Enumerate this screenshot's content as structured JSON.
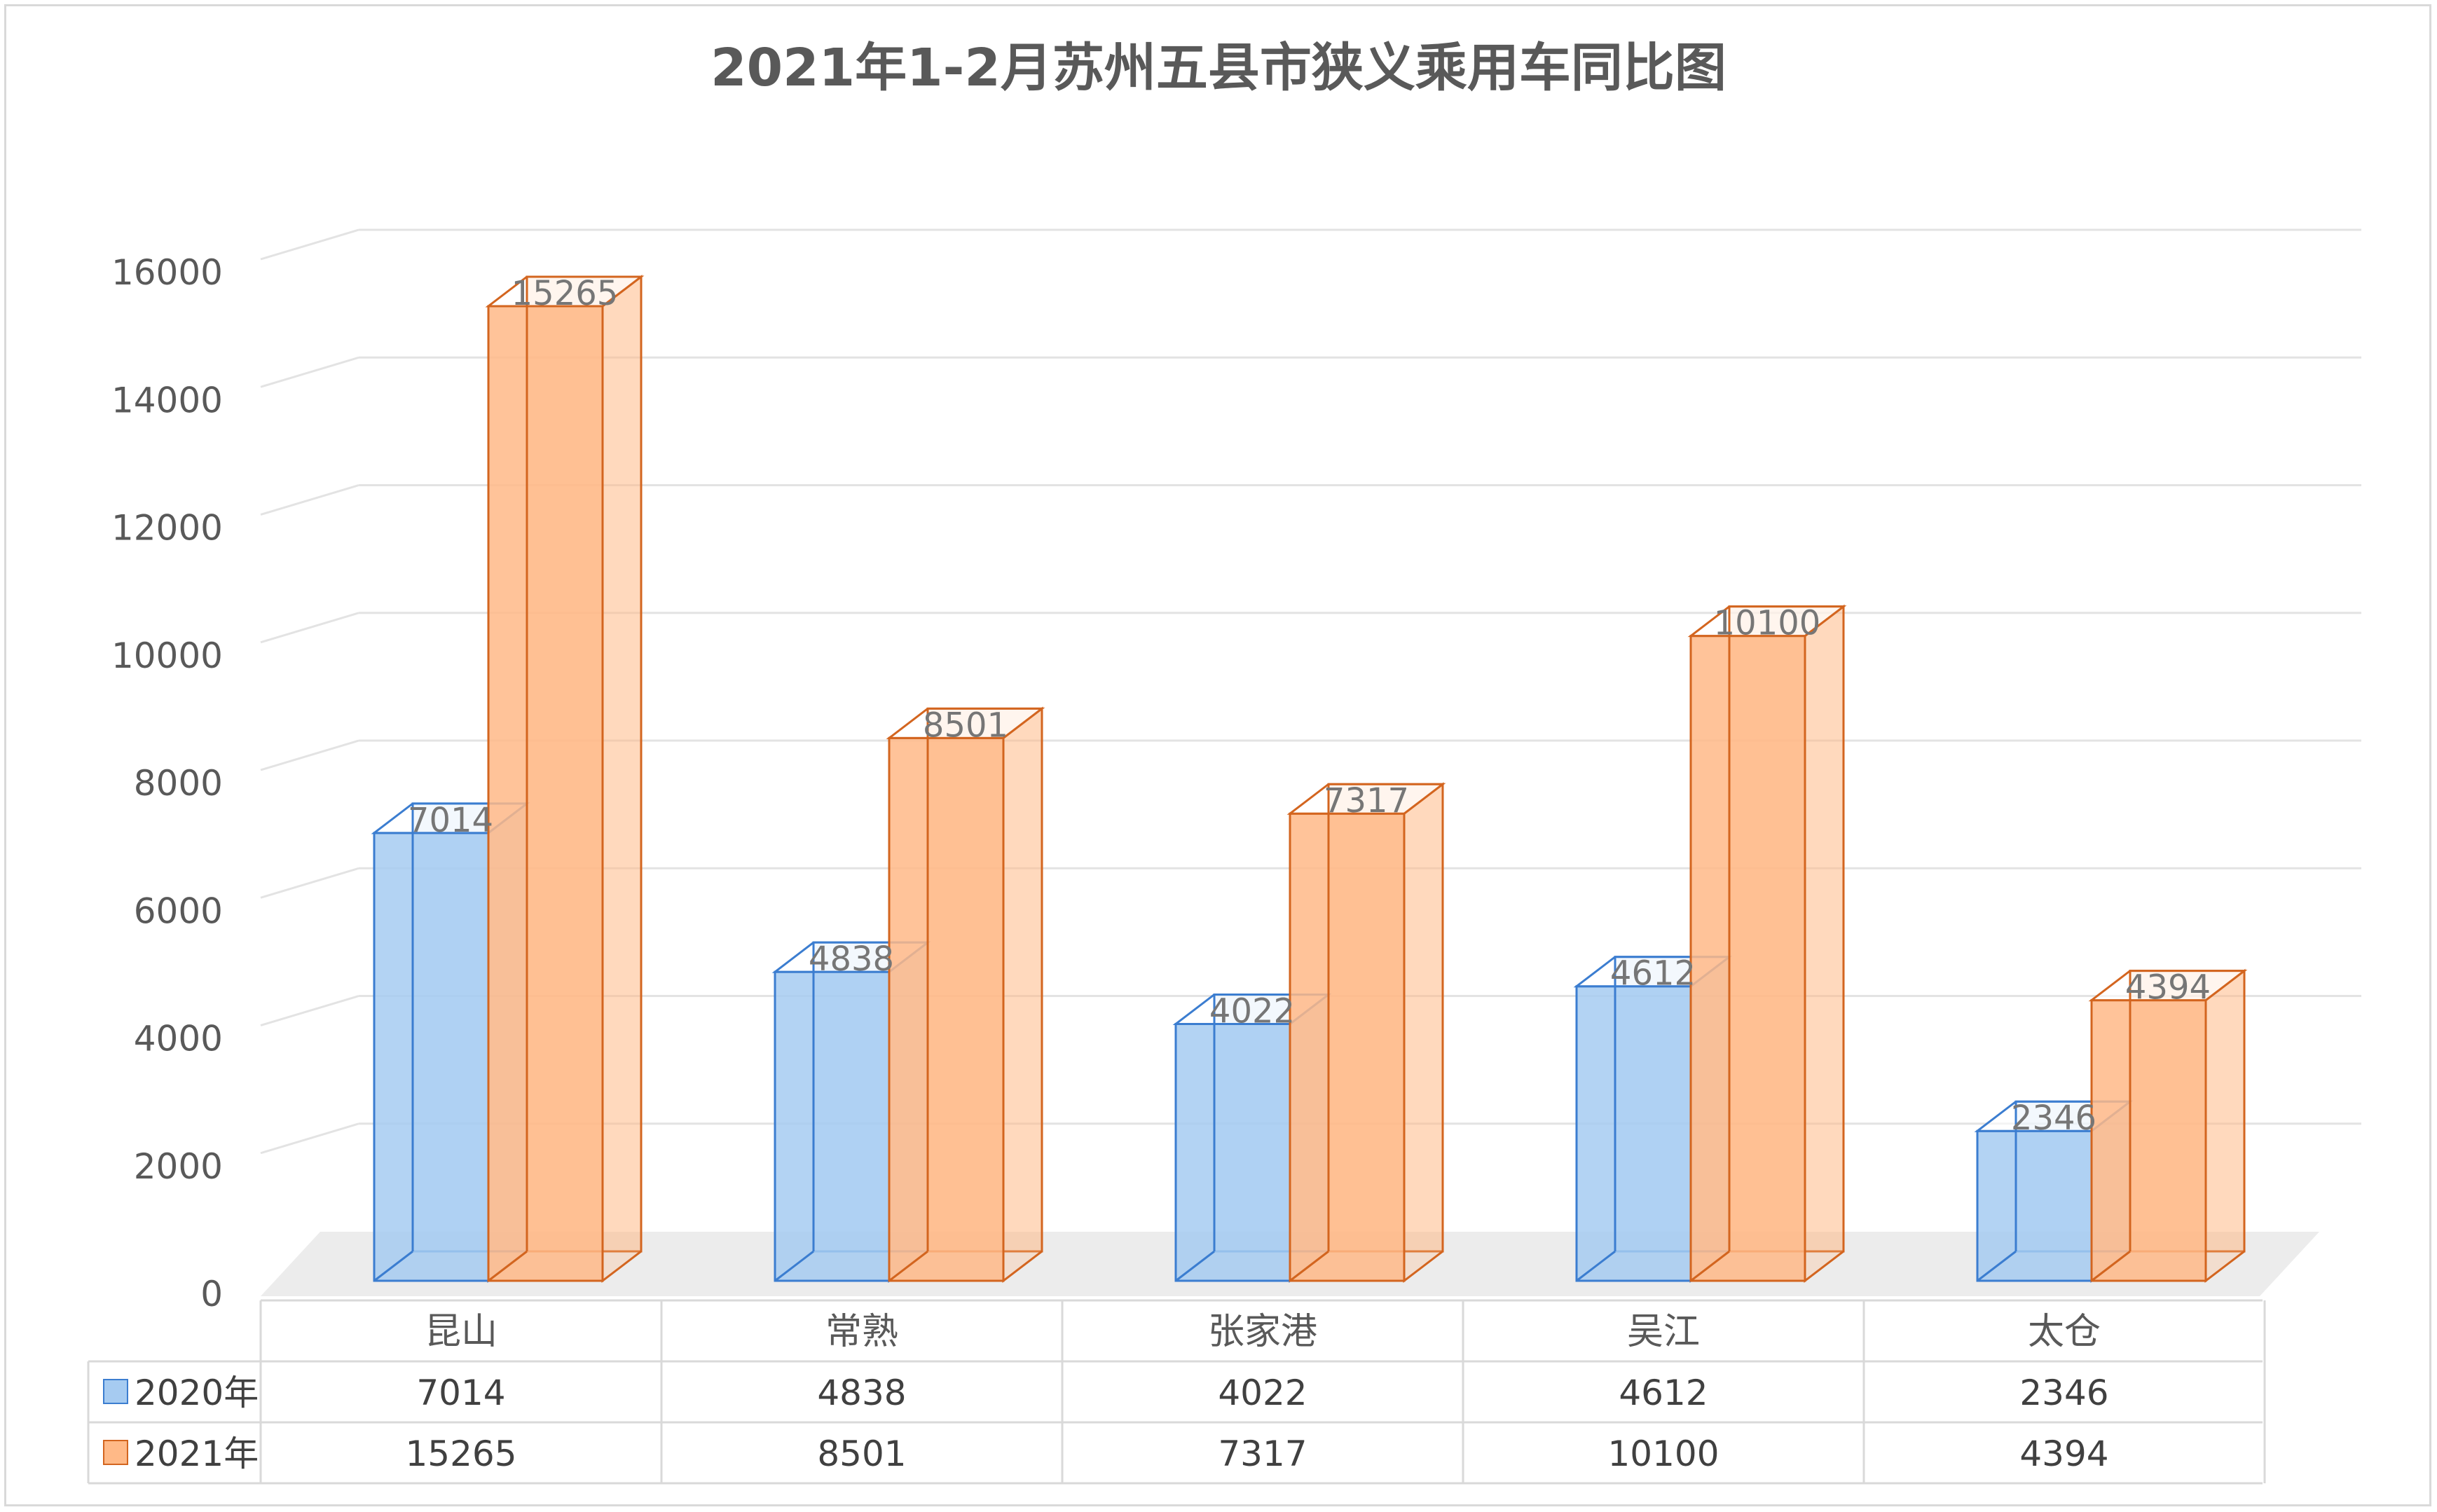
{
  "chart_data": {
    "type": "bar",
    "title": "2021年1-2月苏州五县市狭义乘用车同比图",
    "categories": [
      "昆山",
      "常熟",
      "张家港",
      "吴江",
      "太仓"
    ],
    "series": [
      {
        "name": "2020年",
        "values": [
          7014,
          4838,
          4022,
          4612,
          2346
        ],
        "color": "#a6cbf1",
        "stroke": "#3b7dd0"
      },
      {
        "name": "2021年",
        "values": [
          15265,
          8501,
          7317,
          10100,
          4394
        ],
        "color": "#ffb987",
        "stroke": "#d3651f"
      }
    ],
    "y_ticks": [
      "0",
      "2000",
      "4000",
      "6000",
      "8000",
      "10000",
      "12000",
      "14000",
      "16000"
    ],
    "ylim": [
      0,
      16000
    ],
    "grid": true,
    "legend": "data-table",
    "three_d": true
  }
}
